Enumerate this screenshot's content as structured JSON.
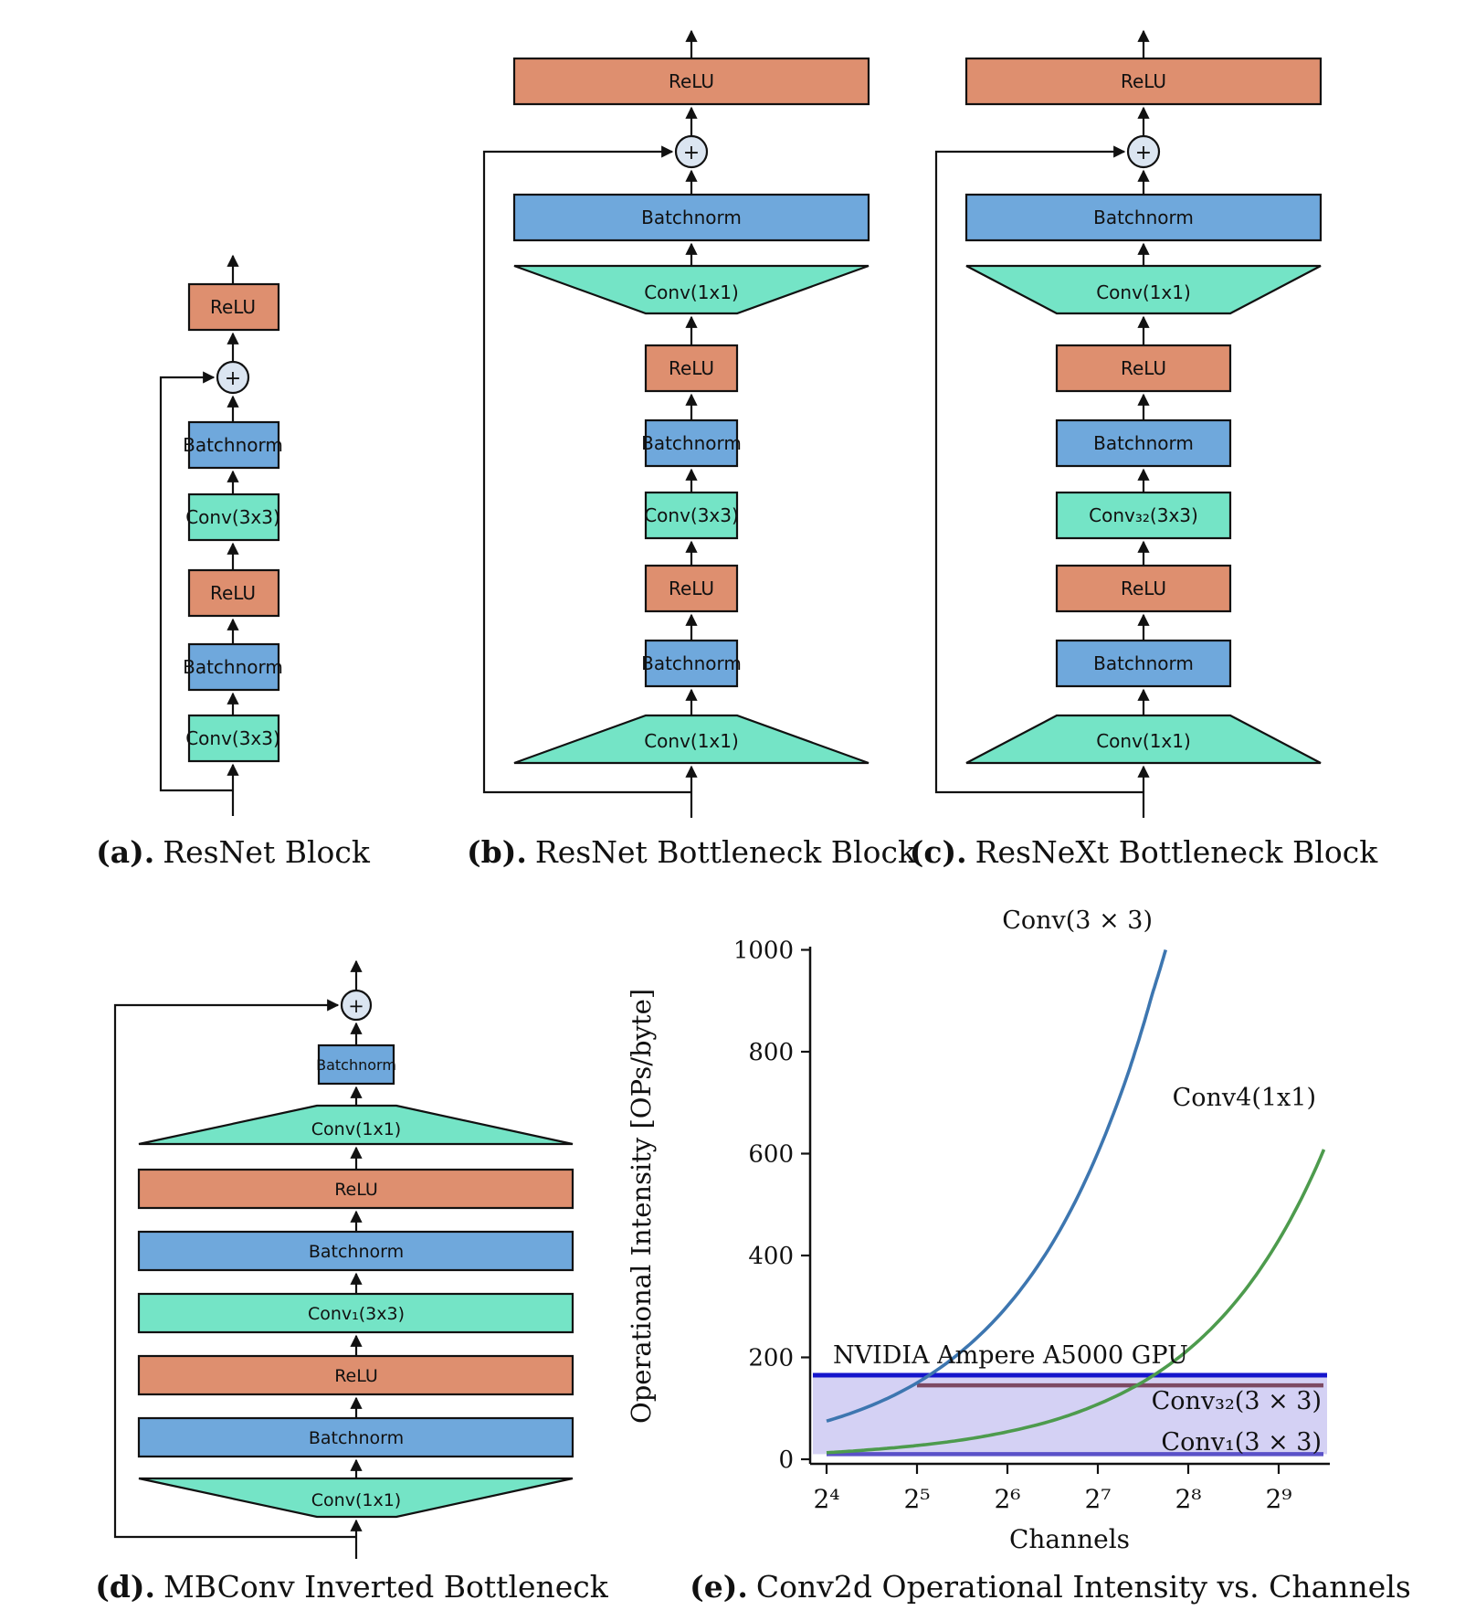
{
  "figure": {
    "background": "#ffffff"
  },
  "colors": {
    "relu": "#de8f6f",
    "batchnorm": "#6fa8dc",
    "conv": "#74e4c6",
    "plus_fill": "#dbe5f1",
    "stroke": "#111111",
    "hline_label": "#232a5c"
  },
  "diagrams": {
    "a": {
      "caption_label": "(a).",
      "caption_title": "ResNet Block",
      "plus": "+",
      "blocks": {
        "relu_out": "ReLU",
        "bn2": "Batchnorm",
        "conv2": "Conv(3x3)",
        "relu1": "ReLU",
        "bn1": "Batchnorm",
        "conv1": "Conv(3x3)"
      }
    },
    "b": {
      "caption_label": "(b).",
      "caption_title": "ResNet Bottleneck Block",
      "plus": "+",
      "blocks": {
        "relu_out": "ReLU",
        "bn3": "Batchnorm",
        "conv3": "Conv(1x1)",
        "relu2": "ReLU",
        "bn2": "Batchnorm",
        "conv2": "Conv(3x3)",
        "relu1": "ReLU",
        "bn1": "Batchnorm",
        "conv1": "Conv(1x1)"
      }
    },
    "c": {
      "caption_label": "(c).",
      "caption_title": "ResNeXt Bottleneck Block",
      "plus": "+",
      "blocks": {
        "relu_out": "ReLU",
        "bn3": "Batchnorm",
        "conv3": "Conv(1x1)",
        "relu2": "ReLU",
        "bn2": "Batchnorm",
        "conv2": "Conv₃₂(3x3)",
        "relu1": "ReLU",
        "bn1": "Batchnorm",
        "conv1": "Conv(1x1)"
      }
    },
    "d": {
      "caption_label": "(d).",
      "caption_title": "MBConv Inverted Bottleneck",
      "plus": "+",
      "blocks": {
        "bn_out": "Batchnorm",
        "conv3": "Conv(1x1)",
        "relu2": "ReLU",
        "bn2": "Batchnorm",
        "conv2": "Conv₁(3x3)",
        "relu1": "ReLU",
        "bn1": "Batchnorm",
        "conv1": "Conv(1x1)"
      }
    }
  },
  "chart_caption": {
    "label": "(e).",
    "title": "Conv2d Operational Intensity vs. Channels"
  },
  "chart_data": {
    "type": "line",
    "title": "",
    "xlabel": "Channels",
    "ylabel": "Operational Intensity [OPs/byte]",
    "x_scale": "log2",
    "xlim_log2": [
      3.8,
      9.6
    ],
    "ylim": [
      0,
      1000
    ],
    "grid": false,
    "legend_position": "inline-labels",
    "xticks": [
      "2⁴",
      "2⁵",
      "2⁶",
      "2⁷",
      "2⁸",
      "2⁹"
    ],
    "xtick_exponents": [
      4,
      5,
      6,
      7,
      8,
      9
    ],
    "yticks": [
      0,
      200,
      400,
      600,
      800,
      1000
    ],
    "series": [
      {
        "name": "Conv(3 × 3)",
        "color": "#3d76b0",
        "x_log2": [
          4,
          4.5,
          5,
          5.5,
          6,
          6.5,
          7,
          7.35,
          7.6,
          7.75
        ],
        "values": [
          75,
          106,
          150,
          213,
          301,
          425,
          602,
          766,
          912,
          1000
        ]
      },
      {
        "name": "Conv4(1x1)",
        "color": "#4d9b4d",
        "x_log2": [
          4,
          4.5,
          5,
          5.5,
          6,
          6.5,
          7,
          7.5,
          8,
          8.5,
          9,
          9.5
        ],
        "values": [
          13,
          19,
          27,
          38,
          54,
          76,
          108,
          152,
          215,
          304,
          430,
          608
        ]
      }
    ],
    "hlines": [
      {
        "name": "NVIDIA Ampere A5000 GPU",
        "value": 165,
        "color": "#1515cc",
        "label_color": "#111111"
      },
      {
        "name": "Conv₃₂(3 × 3)",
        "value": 145,
        "color": "#7d4a63",
        "label_color": "#232a5c"
      },
      {
        "name": "Conv₁(3 × 3)",
        "value": 10,
        "color": "#5a51c8",
        "label_color": "#232a5c"
      }
    ],
    "band": {
      "from": 10,
      "to": 165,
      "color": "#c9c5f1",
      "opacity": 0.8
    }
  }
}
